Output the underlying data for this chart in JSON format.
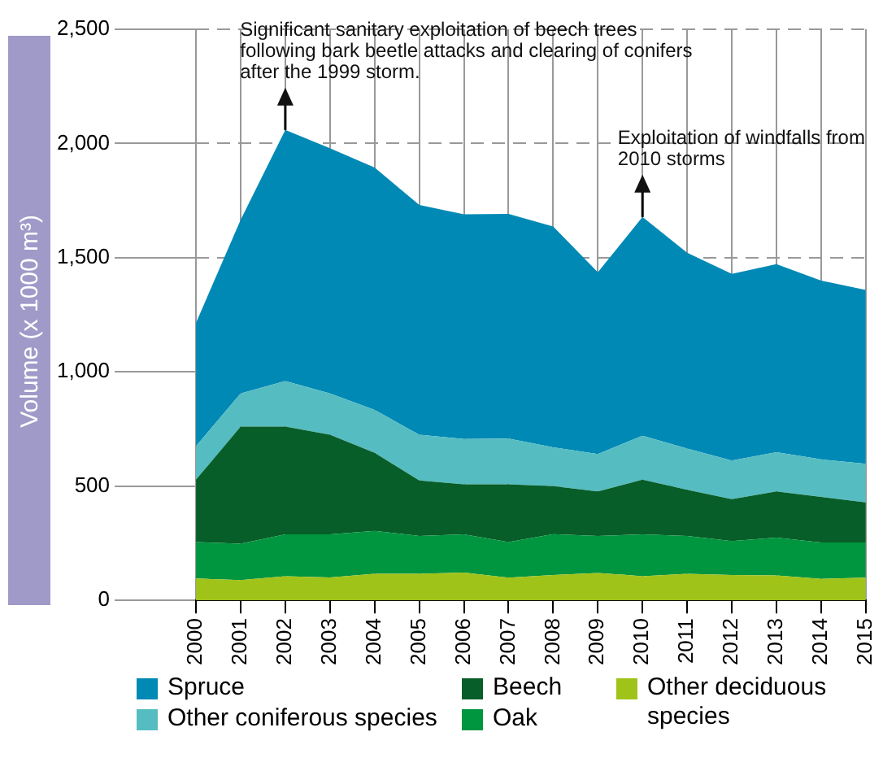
{
  "chart_data": {
    "type": "area",
    "stacked": true,
    "ylabel": "Volume (x 1000 m³)",
    "categories": [
      "2000",
      "2001",
      "2002",
      "2003",
      "2004",
      "2005",
      "2006",
      "2007",
      "2008",
      "2009",
      "2010",
      "2011",
      "2012",
      "2013",
      "2014",
      "2015"
    ],
    "series": [
      {
        "name": "Other deciduous species",
        "color": "#a0c31a",
        "values": [
          96,
          89,
          106,
          100,
          116,
          116,
          122,
          99,
          111,
          120,
          106,
          116,
          111,
          109,
          94,
          99
        ]
      },
      {
        "name": "Oak",
        "color": "#00953f",
        "values": [
          159,
          159,
          183,
          189,
          188,
          166,
          167,
          156,
          179,
          162,
          183,
          166,
          149,
          166,
          159,
          154
        ]
      },
      {
        "name": "Beech",
        "color": "#075e28",
        "values": [
          273,
          513,
          472,
          436,
          342,
          243,
          219,
          253,
          210,
          195,
          239,
          202,
          183,
          202,
          200,
          176
        ]
      },
      {
        "name": "Other coniferous species",
        "color": "#55bdc1",
        "values": [
          147,
          145,
          199,
          181,
          188,
          200,
          198,
          200,
          170,
          164,
          193,
          181,
          169,
          172,
          164,
          169
        ]
      },
      {
        "name": "Spruce",
        "color": "#0089b5",
        "values": [
          540,
          760,
          1099,
          1073,
          1061,
          1006,
          984,
          984,
          967,
          795,
          957,
          857,
          817,
          823,
          783,
          761
        ]
      }
    ],
    "ylim": [
      0,
      2500
    ],
    "yticks": [
      0,
      500,
      {
        "value": 1000,
        "label": "1,000"
      },
      {
        "value": 1500,
        "label": "1,500"
      },
      {
        "value": 2000,
        "label": "2,000"
      },
      {
        "value": 2500,
        "label": "2,500"
      }
    ],
    "grid": true,
    "legend": "bottom",
    "annotations": [
      {
        "text": "Significant sanitary exploitation of beech trees following bark beetle attacks and clearing of conifers after the 1999 storm.",
        "x": "2002",
        "y": 2059
      },
      {
        "text": "Exploitation of windfalls from 2010 storms",
        "x": "2010",
        "y": 1678
      }
    ]
  }
}
